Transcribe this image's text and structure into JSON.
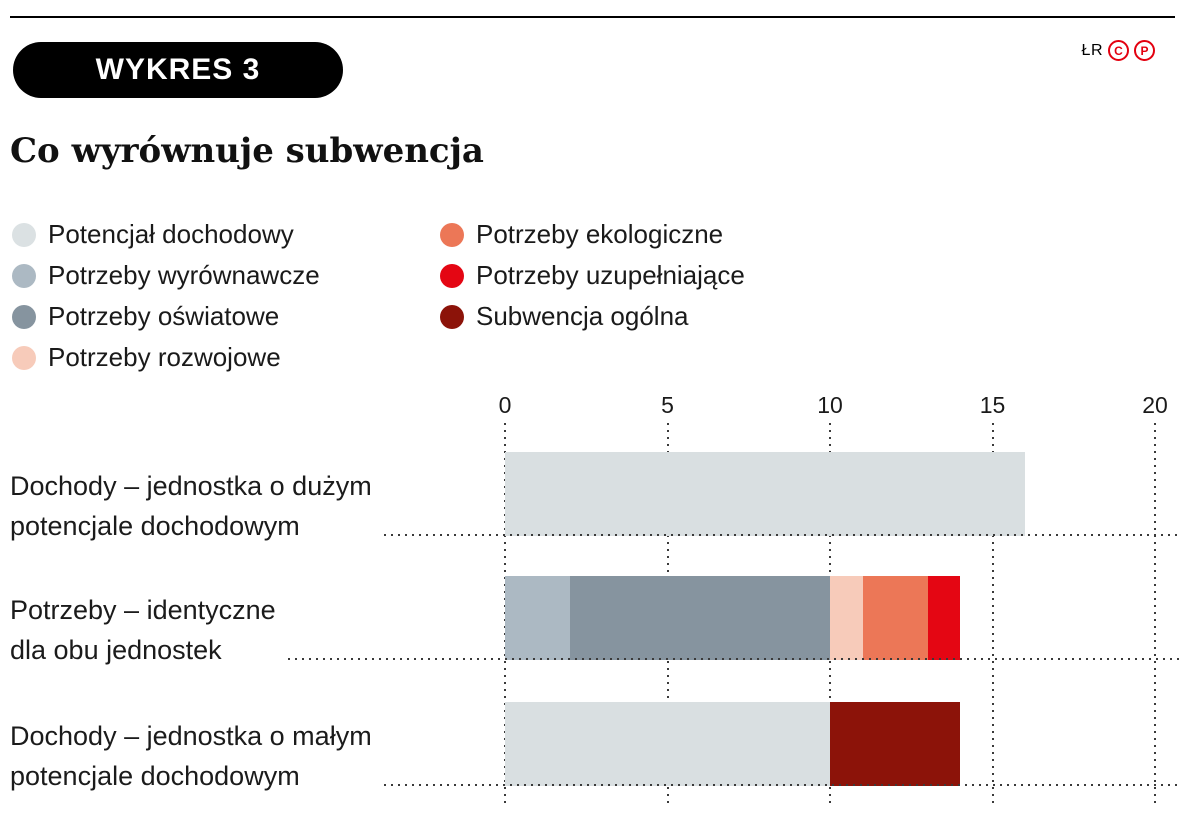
{
  "header": {
    "badge": "WYKRES 3",
    "brand_initials": "ŁR",
    "copyright_c": "C",
    "copyright_p": "P",
    "title": "Co wyrównuje subwencja",
    "accent_red": "#e3000f"
  },
  "legend": {
    "columns": [
      {
        "items": [
          {
            "label": "Potencjał dochodowy",
            "color": "#dbe1e3"
          },
          {
            "label": "Potrzeby wyrównawcze",
            "color": "#acb9c3"
          },
          {
            "label": "Potrzeby oświatowe",
            "color": "#86949f"
          },
          {
            "label": "Potrzeby rozwojowe",
            "color": "#f7cbba"
          }
        ]
      },
      {
        "items": [
          {
            "label": "Potrzeby ekologiczne",
            "color": "#ec7757"
          },
          {
            "label": "Potrzeby uzupełniające",
            "color": "#e40613"
          },
          {
            "label": "Subwencja ogólna",
            "color": "#8c1309"
          }
        ]
      }
    ]
  },
  "chart_data": {
    "type": "bar",
    "orientation": "horizontal",
    "stacked": true,
    "title": "Co wyrównuje subwencja",
    "xlim": [
      0,
      20
    ],
    "x_ticks": [
      0,
      5,
      10,
      15,
      20
    ],
    "x_axis_position": "top",
    "grid": "dotted-vertical",
    "legend_position": "top-left, two columns",
    "categories": [
      "Dochody – jednostka o dużym potencjale dochodowym",
      "Potrzeby – identyczne dla obu jednostek",
      "Dochody – jednostka o małym potencjale dochodowym"
    ],
    "categories_lines": [
      [
        "Dochody – jednostka o dużym",
        "potencjale dochodowym"
      ],
      [
        "Potrzeby – identyczne",
        "dla obu jednostek"
      ],
      [
        "Dochody – jednostka o małym",
        "potencjale dochodowym"
      ]
    ],
    "series": [
      {
        "name": "Potencjał dochodowy",
        "color": "#d9dfe1",
        "values": [
          16,
          0,
          10
        ]
      },
      {
        "name": "Potrzeby wyrównawcze",
        "color": "#acb9c3",
        "values": [
          0,
          2,
          0
        ]
      },
      {
        "name": "Potrzeby oświatowe",
        "color": "#86949f",
        "values": [
          0,
          8,
          0
        ]
      },
      {
        "name": "Potrzeby rozwojowe",
        "color": "#f7cbba",
        "values": [
          0,
          1,
          0
        ]
      },
      {
        "name": "Potrzeby ekologiczne",
        "color": "#ec7757",
        "values": [
          0,
          2,
          0
        ]
      },
      {
        "name": "Potrzeby uzupełniające",
        "color": "#e40613",
        "values": [
          0,
          1,
          0
        ]
      },
      {
        "name": "Subwencja ogólna",
        "color": "#8c1309",
        "values": [
          0,
          0,
          4
        ]
      }
    ],
    "row_totals": [
      16,
      14,
      14
    ]
  }
}
